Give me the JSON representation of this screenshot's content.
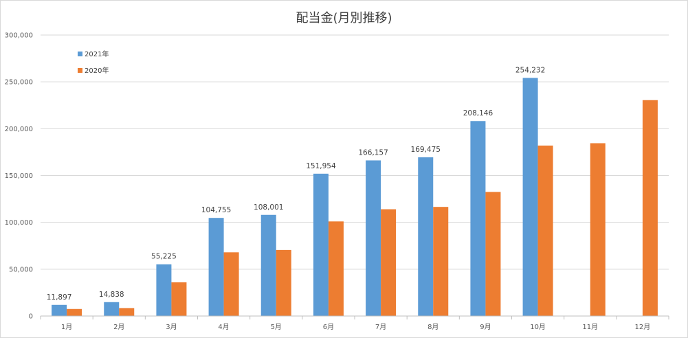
{
  "chart_data": {
    "type": "bar",
    "title": "配当金(月別推移)",
    "categories": [
      "1月",
      "2月",
      "3月",
      "4月",
      "5月",
      "6月",
      "7月",
      "8月",
      "9月",
      "10月",
      "11月",
      "12月"
    ],
    "series": [
      {
        "name": "2021年",
        "color": "#5b9bd5",
        "values": [
          11897,
          14838,
          55225,
          104755,
          108001,
          151954,
          166157,
          169475,
          208146,
          254232,
          null,
          null
        ],
        "labels": [
          "11,897",
          "14,838",
          "55,225",
          "104,755",
          "108,001",
          "151,954",
          "166,157",
          "169,475",
          "208,146",
          "254,232",
          "",
          ""
        ]
      },
      {
        "name": "2020年",
        "color": "#ed7d31",
        "values": [
          7500,
          8500,
          36000,
          68000,
          70500,
          101000,
          114000,
          116500,
          132500,
          182000,
          184500,
          230500
        ]
      }
    ],
    "ylim": [
      0,
      300000
    ],
    "yticks": [
      0,
      50000,
      100000,
      150000,
      200000,
      250000,
      300000
    ],
    "ytick_labels": [
      "0",
      "50,000",
      "100,000",
      "150,000",
      "200,000",
      "250,000",
      "300,000"
    ],
    "grid": true,
    "legend_position": "top-left"
  }
}
